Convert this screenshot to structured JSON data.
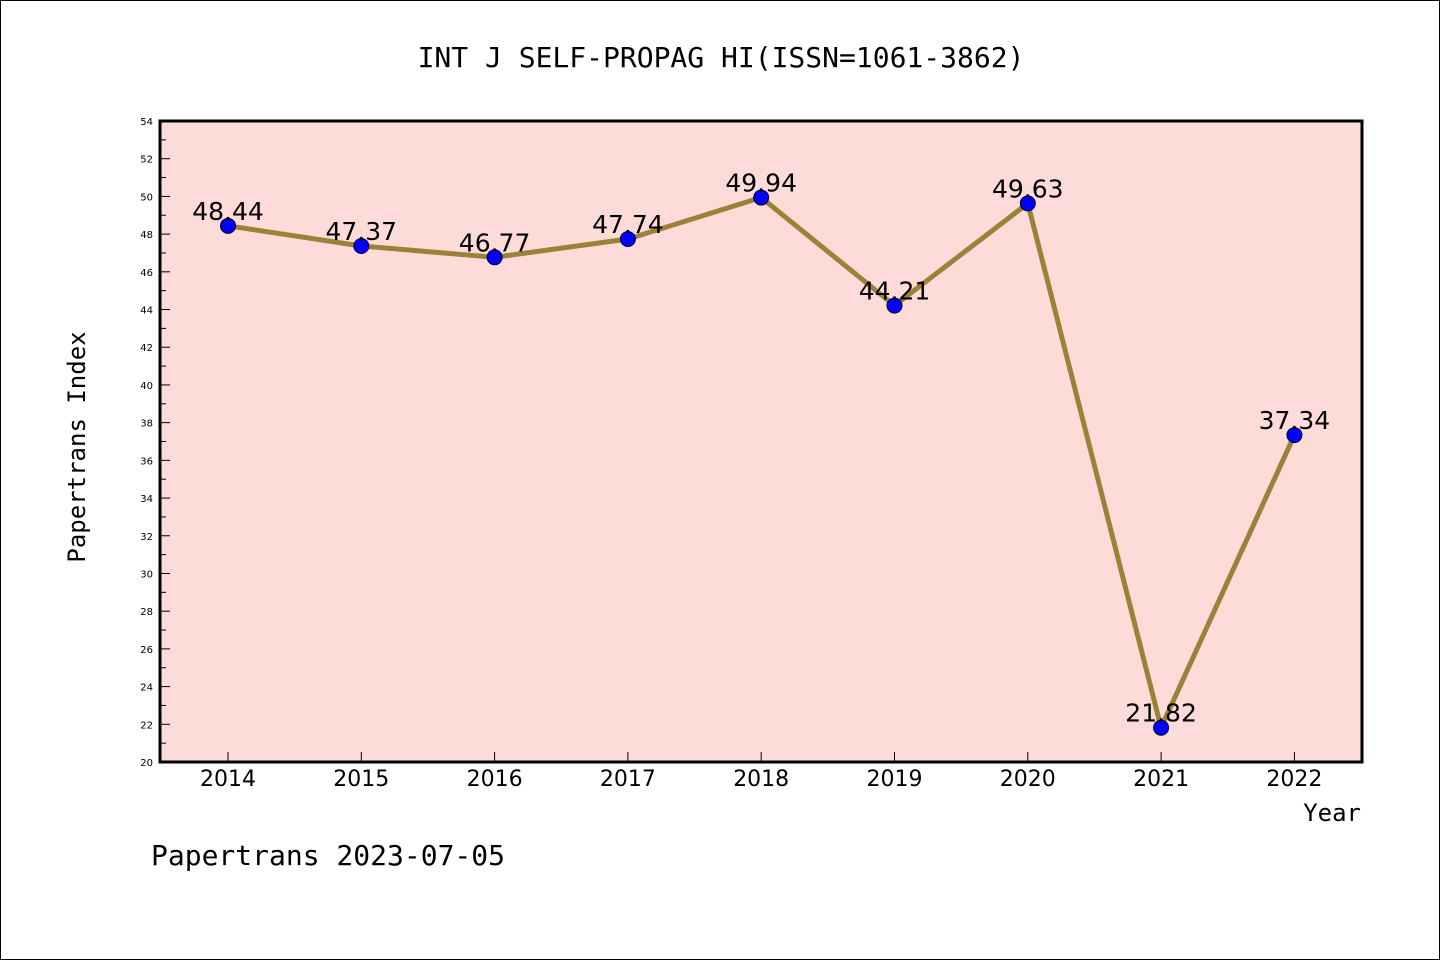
{
  "chart_data": {
    "type": "line",
    "title": "INT J SELF-PROPAG HI(ISSN=1061-3862)",
    "xlabel": "Year",
    "ylabel": "Papertrans Index",
    "categories": [
      "2014",
      "2015",
      "2016",
      "2017",
      "2018",
      "2019",
      "2020",
      "2021",
      "2022"
    ],
    "series": [
      {
        "values": [
          48.44,
          47.37,
          46.77,
          47.74,
          49.94,
          44.21,
          49.63,
          21.82,
          37.34
        ],
        "data_labels": [
          "48.44",
          "47.37",
          "46.77",
          "47.74",
          "49.94",
          "44.21",
          "49.63",
          "21.82",
          "37.34"
        ]
      }
    ],
    "ylim": [
      20,
      54
    ],
    "yticks": [
      "20",
      "22",
      "24",
      "26",
      "28",
      "30",
      "32",
      "34",
      "36",
      "38",
      "40",
      "42",
      "44",
      "46",
      "48",
      "50",
      "52",
      "54"
    ],
    "grid": false,
    "legend": "none"
  },
  "footer": {
    "text": "Papertrans 2023-07-05"
  },
  "colors": {
    "plot_background": "#fddbd9",
    "line": "#9a8239",
    "marker": "#0000ff",
    "axis": "#000000"
  }
}
